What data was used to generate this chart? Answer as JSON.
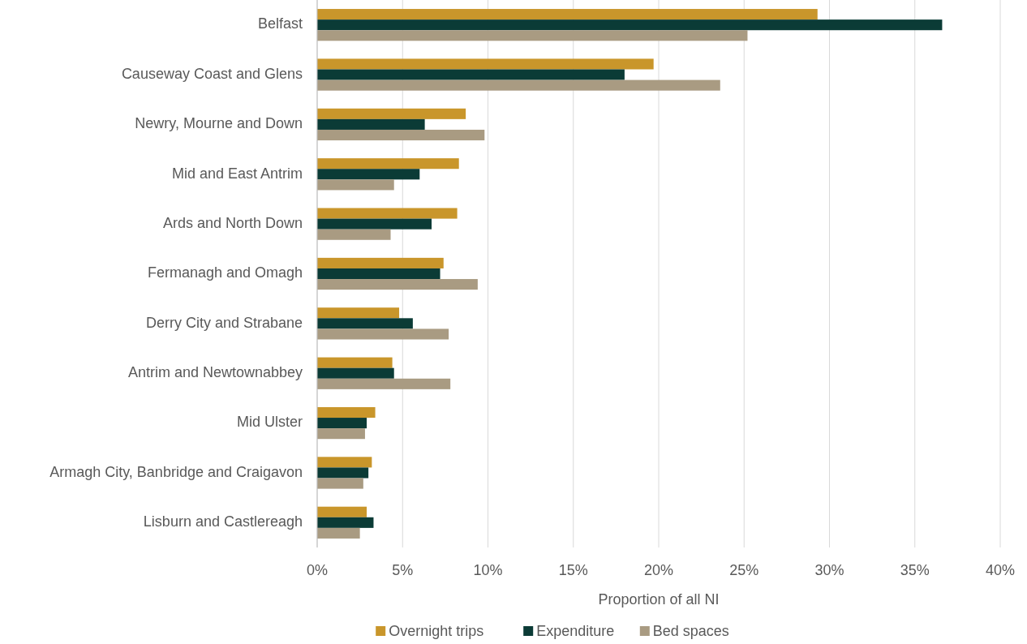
{
  "chart_data": {
    "type": "bar",
    "orientation": "horizontal",
    "xlabel": "Proportion of all NI",
    "categories": [
      "Belfast",
      "Causeway Coast and Glens",
      "Newry, Mourne and Down",
      "Mid and East Antrim",
      "Ards and North Down",
      "Fermanagh and Omagh",
      "Derry City and Strabane",
      "Antrim and Newtownabbey",
      "Mid Ulster",
      "Armagh City, Banbridge and Craigavon",
      "Lisburn and Castlereagh"
    ],
    "series": [
      {
        "name": "Overnight trips",
        "color": "#c9962b",
        "values": [
          29.3,
          19.7,
          8.7,
          8.3,
          8.2,
          7.4,
          4.8,
          4.4,
          3.4,
          3.2,
          2.9
        ]
      },
      {
        "name": "Expenditure",
        "color": "#0b3b36",
        "values": [
          36.6,
          18.0,
          6.3,
          6.0,
          6.7,
          7.2,
          5.6,
          4.5,
          2.9,
          3.0,
          3.3
        ]
      },
      {
        "name": "Bed spaces",
        "color": "#a99b82",
        "values": [
          25.2,
          23.6,
          9.8,
          4.5,
          4.3,
          9.4,
          7.7,
          7.8,
          2.8,
          2.7,
          2.5
        ]
      }
    ],
    "xlim": [
      0,
      40
    ],
    "xticks": [
      {
        "value": 0,
        "label": "0%"
      },
      {
        "value": 5,
        "label": "5%"
      },
      {
        "value": 10,
        "label": "10%"
      },
      {
        "value": 15,
        "label": "15%"
      },
      {
        "value": 20,
        "label": "20%"
      },
      {
        "value": 25,
        "label": "25%"
      },
      {
        "value": 30,
        "label": "30%"
      },
      {
        "value": 35,
        "label": "35%"
      },
      {
        "value": 40,
        "label": "40%"
      }
    ],
    "grid": "x",
    "legend": "bottom"
  }
}
